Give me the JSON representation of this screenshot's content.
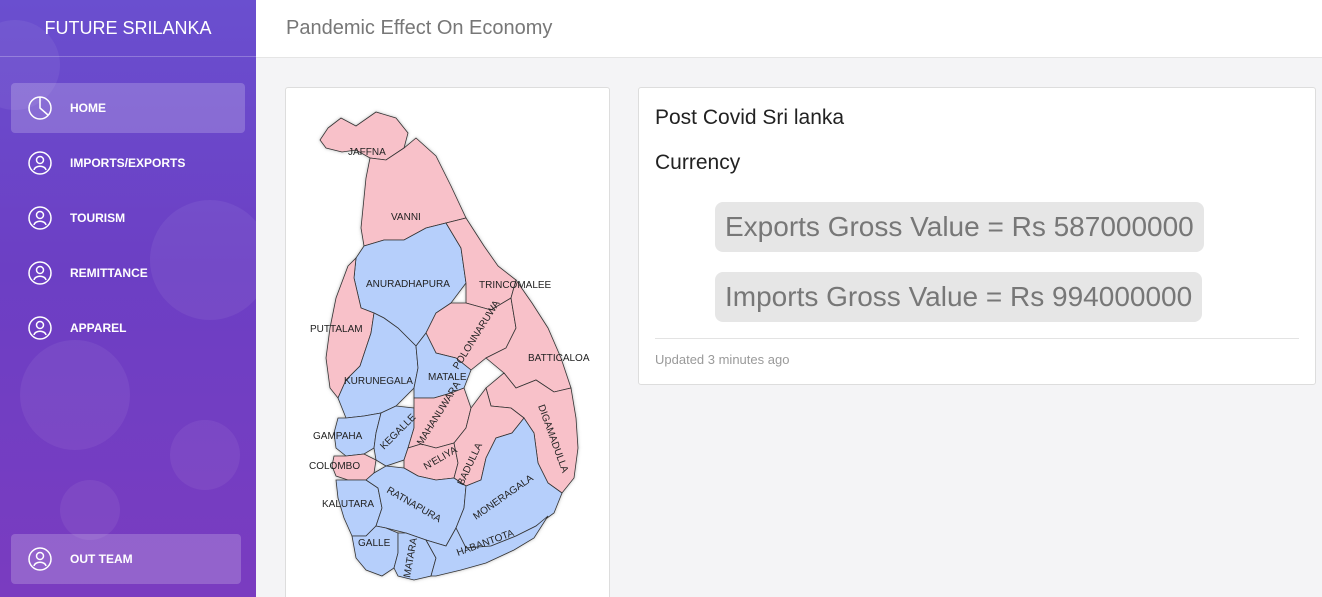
{
  "sidebar": {
    "brand": "FUTURE SRILANKA",
    "items": [
      {
        "label": "HOME",
        "icon": "pie-chart-icon",
        "active": true
      },
      {
        "label": "IMPORTS/EXPORTS",
        "icon": "user-icon"
      },
      {
        "label": "TOURISM",
        "icon": "user-icon"
      },
      {
        "label": "REMITTANCE",
        "icon": "user-icon"
      },
      {
        "label": "APPAREL",
        "icon": "user-icon"
      }
    ],
    "team": {
      "label": "OUT TEAM",
      "icon": "user-icon"
    }
  },
  "header": {
    "title": "Pandemic Effect On Economy"
  },
  "map": {
    "colors": {
      "pink": "#f8c1c9",
      "blue": "#b6cffb",
      "border": "#999999"
    },
    "labels": [
      "JAFFNA",
      "VANNI",
      "ANURADHAPURA",
      "TRINCOMALEE",
      "PUTTALAM",
      "POLONNARUWA",
      "BATTICALOA",
      "KURUNEGALA",
      "MATALE",
      "GAMPAHA",
      "KEGALLE",
      "MAHANUWARA",
      "DIGAMADULLA",
      "COLOMBO",
      "N'ELIYA",
      "BADULLA",
      "KALUTARA",
      "RATNAPURA",
      "MONERAGALA",
      "GALLE",
      "MATARA",
      "HABANTOTA"
    ]
  },
  "card": {
    "title": "Post Covid Sri lanka",
    "subtitle": "Currency",
    "exports": "Exports Gross Value = Rs 587000000",
    "imports": "Imports Gross Value = Rs 994000000",
    "updated": "Updated 3 minutes ago"
  }
}
